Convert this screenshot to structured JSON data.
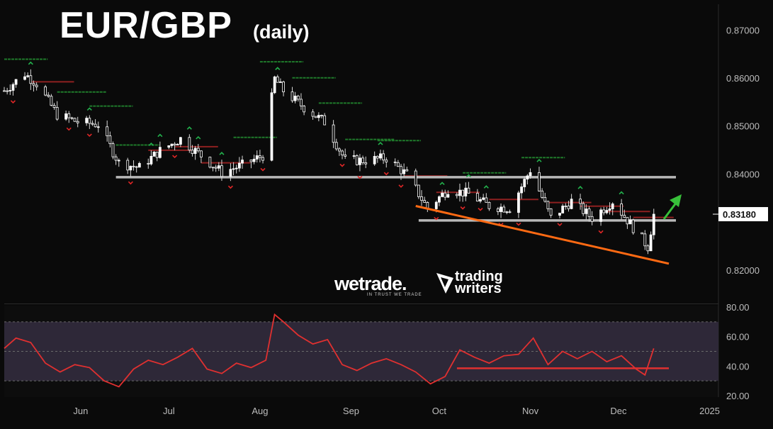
{
  "header": {
    "title": "EUR/GBP",
    "subtitle": "(daily)"
  },
  "branding": {
    "logo_a": "wetrade.",
    "logo_a_tagline": "IN TRUST WE TRADE",
    "logo_b_line1": "trading",
    "logo_b_line2": "writers"
  },
  "colors": {
    "background": "#0a0a0a",
    "candle_up": "#ffffff",
    "candle_down": "#ffffff",
    "support_line": "#b8b8b8",
    "trendline": "#ff6a13",
    "rsi_line": "#e03030",
    "rsi_band": "#2e2838",
    "signal_up": "#22b14c",
    "signal_down": "#e02626",
    "stop_red": "#8e2020",
    "stop_green": "#1f7a2b",
    "arrow_green": "#38c03a",
    "price_tag_bg": "#ffffff"
  },
  "chart_data": [
    {
      "type": "candlestick",
      "title": "EUR/GBP",
      "subtitle": "(daily)",
      "x_tick_labels": [
        "Jun",
        "Jul",
        "Aug",
        "Sep",
        "Oct",
        "Nov",
        "Dec",
        "2025"
      ],
      "y_tick_labels": [
        "0.87000",
        "0.86000",
        "0.85000",
        "0.84000",
        "0.82000"
      ],
      "y_ticks": [
        0.87,
        0.86,
        0.85,
        0.84,
        0.82
      ],
      "ylim": [
        0.8135,
        0.8755
      ],
      "last_price_label": "0.83180",
      "last_price": 0.8318,
      "close_path": [
        [
          "2024-05-06",
          0.8575
        ],
        [
          "2024-05-13",
          0.861
        ],
        [
          "2024-05-17",
          0.859
        ],
        [
          "2024-05-24",
          0.8525
        ],
        [
          "2024-05-31",
          0.851
        ],
        [
          "2024-06-07",
          0.8505
        ],
        [
          "2024-06-14",
          0.8425
        ],
        [
          "2024-06-21",
          0.8415
        ],
        [
          "2024-06-28",
          0.845
        ],
        [
          "2024-07-05",
          0.8475
        ],
        [
          "2024-07-12",
          0.844
        ],
        [
          "2024-07-19",
          0.8405
        ],
        [
          "2024-07-26",
          0.842
        ],
        [
          "2024-08-02",
          0.844
        ],
        [
          "2024-08-06",
          0.86
        ],
        [
          "2024-08-09",
          0.8575
        ],
        [
          "2024-08-16",
          0.854
        ],
        [
          "2024-08-23",
          0.851
        ],
        [
          "2024-08-30",
          0.843
        ],
        [
          "2024-09-06",
          0.843
        ],
        [
          "2024-09-13",
          0.8435
        ],
        [
          "2024-09-20",
          0.84
        ],
        [
          "2024-09-27",
          0.833
        ],
        [
          "2024-10-04",
          0.837
        ],
        [
          "2024-10-11",
          0.836
        ],
        [
          "2024-10-18",
          0.8335
        ],
        [
          "2024-10-25",
          0.833
        ],
        [
          "2024-11-01",
          0.841
        ],
        [
          "2024-11-08",
          0.831
        ],
        [
          "2024-11-15",
          0.8345
        ],
        [
          "2024-11-22",
          0.831
        ],
        [
          "2024-11-29",
          0.8345
        ],
        [
          "2024-12-06",
          0.829
        ],
        [
          "2024-12-11",
          0.825
        ],
        [
          "2024-12-13",
          0.8318
        ]
      ],
      "horizontal_levels": [
        {
          "y": 0.8395,
          "from": "2024-06-13",
          "to": "2025-01-04",
          "style": "support-resistance"
        },
        {
          "y": 0.8305,
          "from": "2024-09-24",
          "to": "2025-01-04",
          "style": "support-resistance"
        }
      ],
      "trendline": {
        "start": [
          "2024-09-23",
          0.8335
        ],
        "end": [
          "2025-01-04",
          0.8215
        ]
      },
      "grid": false
    },
    {
      "type": "line",
      "name": "RSI",
      "y_tick_labels": [
        "80.00",
        "60.00",
        "40.00",
        "20.00"
      ],
      "y_ticks": [
        80,
        60,
        40,
        20
      ],
      "ylim": [
        19,
        81
      ],
      "band": [
        30,
        70
      ],
      "midline": 50,
      "x": [
        "2024-05-06",
        "2024-05-10",
        "2024-05-15",
        "2024-05-20",
        "2024-05-25",
        "2024-05-30",
        "2024-06-04",
        "2024-06-09",
        "2024-06-14",
        "2024-06-19",
        "2024-06-24",
        "2024-06-29",
        "2024-07-04",
        "2024-07-09",
        "2024-07-14",
        "2024-07-19",
        "2024-07-24",
        "2024-07-29",
        "2024-08-03",
        "2024-08-06",
        "2024-08-09",
        "2024-08-14",
        "2024-08-19",
        "2024-08-24",
        "2024-08-29",
        "2024-09-03",
        "2024-09-08",
        "2024-09-13",
        "2024-09-18",
        "2024-09-23",
        "2024-09-28",
        "2024-10-03",
        "2024-10-08",
        "2024-10-13",
        "2024-10-18",
        "2024-10-23",
        "2024-10-28",
        "2024-11-02",
        "2024-11-07",
        "2024-11-12",
        "2024-11-17",
        "2024-11-22",
        "2024-11-27",
        "2024-12-02",
        "2024-12-07",
        "2024-12-10",
        "2024-12-13"
      ],
      "values": [
        52,
        59,
        56,
        42,
        36,
        41,
        39,
        30,
        26,
        38,
        44,
        41,
        46,
        52,
        38,
        35,
        42,
        39,
        44,
        75,
        70,
        61,
        55,
        58,
        41,
        37,
        42,
        45,
        41,
        36,
        28,
        33,
        51,
        46,
        42,
        47,
        48,
        59,
        41,
        50,
        45,
        50,
        43,
        47,
        38,
        34,
        52
      ],
      "reference_line": {
        "y": 38.5,
        "from": "2024-10-01",
        "to": "2025-01-04"
      }
    }
  ]
}
